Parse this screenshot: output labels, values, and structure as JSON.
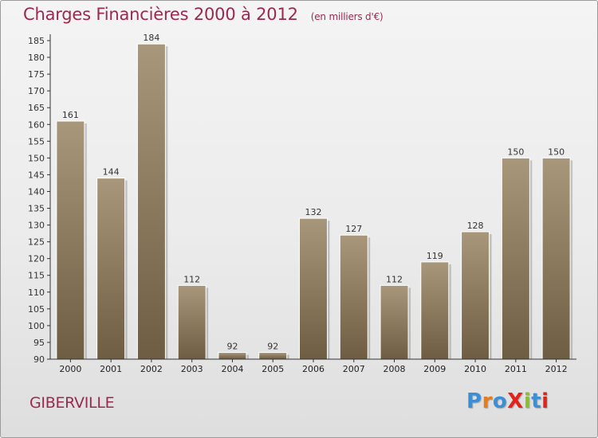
{
  "header": {
    "title": "Charges Financières 2000 à 2012",
    "unit": "(en milliers d'€)"
  },
  "place": "GIBERVILLE",
  "brand": {
    "text": "ProXiti",
    "colors": [
      "#3a8fd6",
      "#e57d1e",
      "#3a8fd6",
      "#e3231a",
      "#8bbf2a",
      "#3a8fd6",
      "#e3231a"
    ]
  },
  "colors": {
    "bar_top": "#a8977a",
    "bar_bottom": "#6e5d42",
    "title": "#9a2a4d"
  },
  "chart_data": {
    "type": "bar",
    "categories": [
      "2000",
      "2001",
      "2002",
      "2003",
      "2004",
      "2005",
      "2006",
      "2007",
      "2008",
      "2009",
      "2010",
      "2011",
      "2012"
    ],
    "values": [
      161,
      144,
      184,
      112,
      92,
      92,
      132,
      127,
      112,
      119,
      128,
      150,
      150
    ],
    "ylim": [
      90,
      185
    ],
    "yticks": [
      90,
      95,
      100,
      105,
      110,
      115,
      120,
      125,
      130,
      135,
      140,
      145,
      150,
      155,
      160,
      165,
      170,
      175,
      180,
      185
    ],
    "grid": false,
    "legend": "none"
  }
}
